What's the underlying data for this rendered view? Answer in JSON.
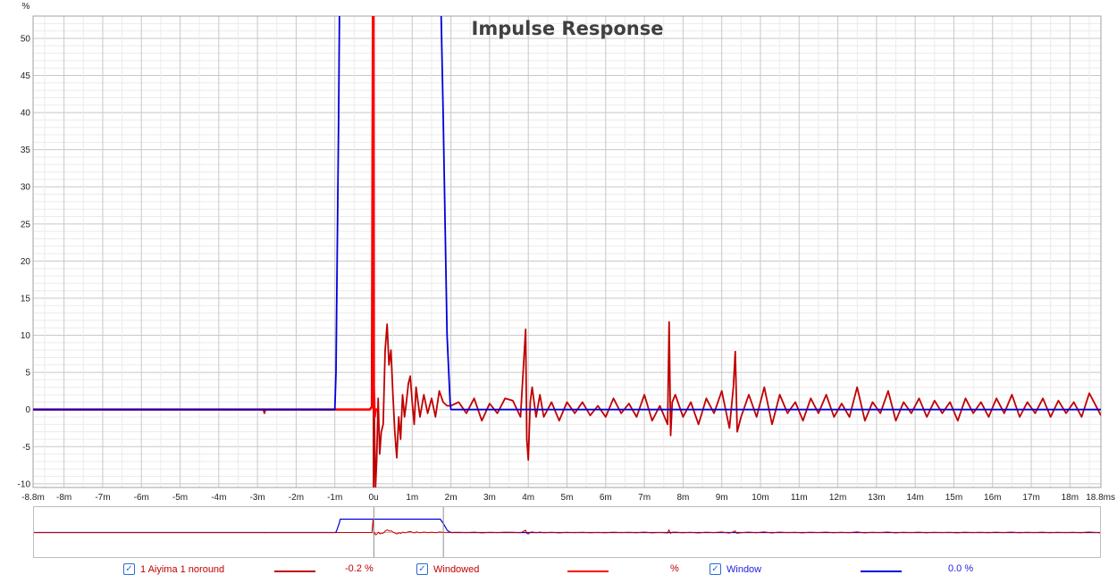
{
  "chart_data": {
    "type": "line",
    "title": "Impulse Response",
    "ylabel": "%",
    "xlabel": "",
    "xlim": [
      -8.8,
      18.8
    ],
    "ylim": [
      -10.5,
      53
    ],
    "grid": true,
    "y_ticks": [
      -10,
      -5,
      0,
      5,
      10,
      15,
      20,
      25,
      30,
      35,
      40,
      45,
      50
    ],
    "y_tick_labels": [
      "-10",
      "-5",
      "0",
      "5",
      "10",
      "15",
      "20",
      "25",
      "30",
      "35",
      "40",
      "45",
      "50"
    ],
    "x_ticks": [
      -8.8,
      -8,
      -7,
      -6,
      -5,
      -4,
      -3,
      -2,
      -1,
      0,
      1,
      2,
      3,
      4,
      5,
      6,
      7,
      8,
      9,
      10,
      11,
      12,
      13,
      14,
      15,
      16,
      17,
      18,
      18.8
    ],
    "x_tick_labels": [
      "-8.8m",
      "-8m",
      "-7m",
      "-6m",
      "-5m",
      "-4m",
      "-3m",
      "-2m",
      "-1m",
      "0u",
      "1m",
      "2m",
      "3m",
      "4m",
      "5m",
      "6m",
      "7m",
      "8m",
      "9m",
      "10m",
      "11m",
      "12m",
      "13m",
      "14m",
      "15m",
      "16m",
      "17m",
      "18m",
      "18.8ms"
    ],
    "series": [
      {
        "name": "1 Aiyima 1 noround",
        "color": "#c00000",
        "x": [
          -8.8,
          -2.85,
          -2.82,
          -2.79,
          -0.1,
          -0.05,
          -0.02,
          0.0,
          0.02,
          0.05,
          0.08,
          0.12,
          0.16,
          0.2,
          0.25,
          0.3,
          0.35,
          0.4,
          0.45,
          0.5,
          0.55,
          0.6,
          0.65,
          0.7,
          0.75,
          0.8,
          0.85,
          0.9,
          0.95,
          1.0,
          1.05,
          1.1,
          1.2,
          1.3,
          1.4,
          1.5,
          1.6,
          1.7,
          1.8,
          1.9,
          2.0,
          2.2,
          2.4,
          2.6,
          2.8,
          3.0,
          3.2,
          3.4,
          3.6,
          3.8,
          3.93,
          3.96,
          4.0,
          4.05,
          4.1,
          4.2,
          4.3,
          4.4,
          4.6,
          4.8,
          5.0,
          5.2,
          5.4,
          5.6,
          5.8,
          6.0,
          6.2,
          6.4,
          6.6,
          6.8,
          7.0,
          7.2,
          7.4,
          7.6,
          7.64,
          7.68,
          7.72,
          7.8,
          8.0,
          8.2,
          8.4,
          8.6,
          8.8,
          9.0,
          9.2,
          9.3,
          9.35,
          9.4,
          9.5,
          9.7,
          9.9,
          10.1,
          10.3,
          10.5,
          10.7,
          10.9,
          11.1,
          11.3,
          11.5,
          11.7,
          11.9,
          12.1,
          12.3,
          12.5,
          12.7,
          12.9,
          13.1,
          13.3,
          13.5,
          13.7,
          13.9,
          14.1,
          14.3,
          14.5,
          14.7,
          14.9,
          15.1,
          15.3,
          15.5,
          15.7,
          15.9,
          16.1,
          16.3,
          16.5,
          16.7,
          16.9,
          17.1,
          17.3,
          17.5,
          17.7,
          17.9,
          18.1,
          18.3,
          18.5,
          18.8
        ],
        "values": [
          0,
          0,
          -0.5,
          0,
          0,
          0.4,
          60,
          -10.5,
          -1,
          -10.5,
          -7,
          1.5,
          -6,
          -3,
          -2,
          8,
          11.5,
          6,
          8,
          2,
          -3,
          -6.5,
          -1,
          -4,
          2,
          -1,
          1,
          3.5,
          4.5,
          1,
          -2,
          3,
          -1,
          2,
          -0.5,
          1.5,
          -1,
          2.5,
          1,
          0.5,
          0.5,
          1,
          -0.5,
          1.5,
          -1.5,
          0.8,
          -0.5,
          1.5,
          1.2,
          -1,
          10.8,
          -4,
          -6.8,
          1,
          3,
          -1,
          2,
          -1,
          1,
          -1.5,
          1,
          -0.5,
          1,
          -0.8,
          0.5,
          -1,
          1.5,
          -0.5,
          0.8,
          -1,
          2,
          -1.5,
          0.5,
          -2,
          11.8,
          -3.5,
          1,
          2,
          -1,
          1,
          -2,
          1.5,
          -0.5,
          2.5,
          -2.5,
          3,
          7.8,
          -3,
          -1,
          2,
          -1,
          3,
          -2,
          2,
          -0.5,
          1,
          -1.5,
          1.5,
          -0.5,
          2,
          -1,
          0.8,
          -1,
          3,
          -1.5,
          1,
          -0.5,
          2.5,
          -1.5,
          1,
          -0.5,
          1.5,
          -1,
          1.2,
          -0.5,
          1,
          -1.5,
          1.5,
          -0.5,
          1,
          -1,
          1.5,
          -0.5,
          2,
          -1,
          1,
          -0.5,
          1.5,
          -1,
          1.2,
          -0.5,
          1,
          -1,
          2.2,
          -0.8
        ]
      },
      {
        "name": "Windowed",
        "color": "#ff0000",
        "x": [
          -8.8,
          -1.0,
          -0.3,
          -0.1,
          -0.03,
          -0.01,
          0.0,
          0.01,
          0.03,
          0.06,
          0.1
        ],
        "values": [
          0,
          0,
          0,
          0,
          0.4,
          60,
          60,
          3,
          -1,
          0,
          0
        ]
      },
      {
        "name": "Window",
        "color": "#0000dd",
        "x": [
          -8.8,
          -1.0,
          -0.97,
          -0.9,
          -0.87,
          1.72,
          1.8,
          1.9,
          1.98,
          2.0,
          18.8
        ],
        "values": [
          0,
          0,
          5,
          40,
          60,
          60,
          40,
          10,
          1,
          0,
          0
        ]
      }
    ]
  },
  "legend": {
    "items": [
      {
        "label": "1 Aiyima 1 noround",
        "value": "-0.2 %",
        "color": "#c00000",
        "text_color": "#c00000"
      },
      {
        "label": "Windowed",
        "value": "%",
        "color": "#ff0000",
        "text_color": "#c00000"
      },
      {
        "label": "Window",
        "value": "0.0 %",
        "color": "#0000dd",
        "text_color": "#2222dd"
      }
    ]
  }
}
